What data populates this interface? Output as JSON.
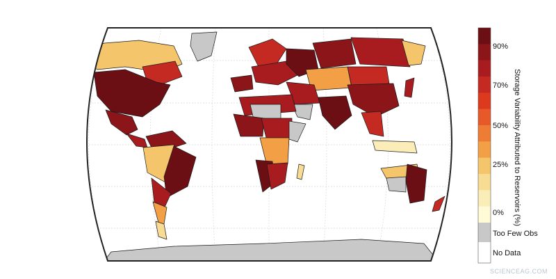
{
  "legend": {
    "title": "Storage Variability Attributed to Reservoirs (%)",
    "tick_labels": [
      "90%",
      "70%",
      "50%",
      "25%",
      "0%"
    ],
    "special_labels": [
      "Too Few Obs",
      "No Data"
    ],
    "colors": [
      "#6b0f14",
      "#8b1519",
      "#a81c1f",
      "#c42a22",
      "#dc3a1f",
      "#e8592a",
      "#ee7c34",
      "#f29f45",
      "#f5c56c",
      "#f8dc94",
      "#fbedb8",
      "#fffbd6"
    ],
    "too_few_obs_color": "#c8c8c8",
    "no_data_color": "#ffffff"
  },
  "watermark": "SCIENCEAG.COM"
}
